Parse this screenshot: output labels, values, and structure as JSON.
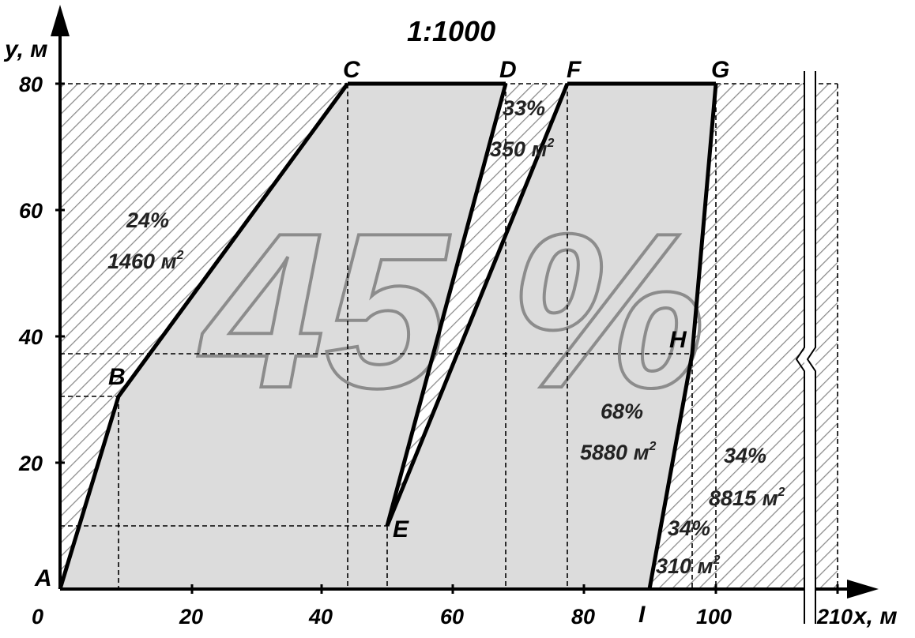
{
  "title": "1:1000",
  "axes": {
    "y_label": "y, м",
    "x_label": "x, м",
    "x_break_label": "210",
    "x_ticks": [
      "0",
      "20",
      "40",
      "60",
      "80",
      "100"
    ],
    "y_ticks": [
      "20",
      "40",
      "60",
      "80"
    ]
  },
  "points": {
    "A": {
      "label": "A",
      "x": 0,
      "y": 0
    },
    "B": {
      "label": "B",
      "x": 9,
      "y": 30.5
    },
    "C": {
      "label": "C",
      "x": 44,
      "y": 80
    },
    "D": {
      "label": "D",
      "x": 68,
      "y": 80
    },
    "E": {
      "label": "E",
      "x": 50,
      "y": 10
    },
    "F": {
      "label": "F",
      "x": 77.5,
      "y": 80
    },
    "G": {
      "label": "G",
      "x": 101.5,
      "y": 80
    },
    "H": {
      "label": "H",
      "x": 96,
      "y": 37
    },
    "I": {
      "label": "I",
      "x": 91,
      "y": 0
    }
  },
  "big_label": "45 %",
  "annotations": {
    "left_pct": "24%",
    "left_area": "1460 м",
    "mid_pct": "33%",
    "mid_area": "350 м",
    "right_pct": "68%",
    "right_area": "5880 м",
    "far_pct": "34%",
    "far_area": "8815 м",
    "small_pct": "34%",
    "small_area": "310 м",
    "sup": "2"
  },
  "colors": {
    "fill": "#dcdcdc",
    "hatch": "#8a8a8a",
    "line": "#000000"
  }
}
